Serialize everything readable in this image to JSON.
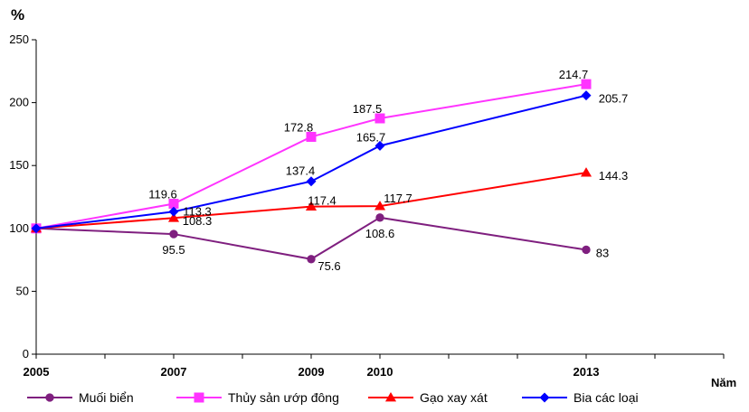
{
  "chart_data": {
    "type": "line",
    "ylabel": "%",
    "xlabel": "Năm",
    "ylim": [
      0,
      250
    ],
    "yticks": [
      0,
      50,
      100,
      150,
      200,
      250
    ],
    "x": [
      2005,
      2007,
      2009,
      2010,
      2013
    ],
    "grid": false,
    "legend_position": "bottom",
    "series": [
      {
        "name": "Muối biển",
        "values": [
          100,
          95.5,
          75.6,
          108.6,
          83
        ],
        "labels": [
          "",
          "95.5",
          "75.6",
          "108.6",
          "83"
        ],
        "color": "#7f1f7f",
        "marker": "circle"
      },
      {
        "name": "Thủy sản ướp đông",
        "values": [
          100,
          119.6,
          172.8,
          187.5,
          214.7
        ],
        "labels": [
          "",
          "119.6",
          "172.8",
          "187.5",
          "214.7"
        ],
        "color": "#ff33ff",
        "marker": "square"
      },
      {
        "name": "Gạo xay xát",
        "values": [
          100,
          108.3,
          117.4,
          117.7,
          144.3
        ],
        "labels": [
          "",
          "108.3",
          "117.4",
          "117.7",
          "144.3"
        ],
        "color": "#ff0000",
        "marker": "triangle"
      },
      {
        "name": "Bia các loại",
        "values": [
          100,
          113.3,
          137.4,
          165.7,
          205.7
        ],
        "labels": [
          "",
          "113.3",
          "137.4",
          "165.7",
          "205.7"
        ],
        "color": "#0000ff",
        "marker": "diamond"
      }
    ]
  }
}
